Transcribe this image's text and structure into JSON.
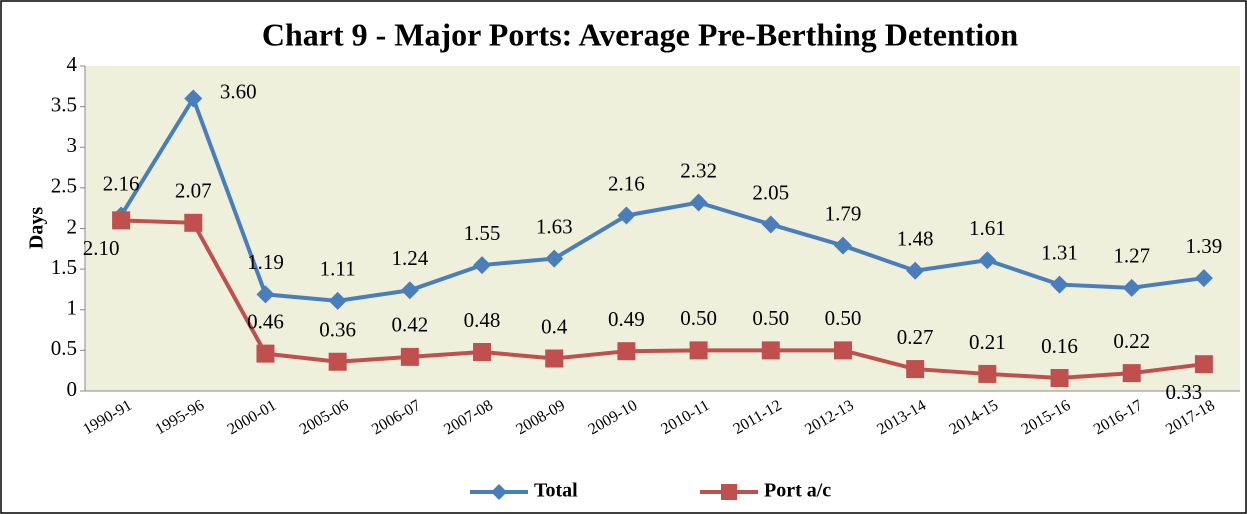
{
  "chart_data": {
    "type": "line",
    "title": "Chart 9 - Major Ports: Average Pre-Berthing Detention",
    "y_label": "Days",
    "categories": [
      "1990-91",
      "1995-96",
      "2000-01",
      "2005-06",
      "2006-07",
      "2007-08",
      "2008-09",
      "2009-10",
      "2010-11",
      "2011-12",
      "2012-13",
      "2013-14",
      "2014-15",
      "2015-16",
      "2016-17",
      "2017-18"
    ],
    "series": [
      {
        "name": "Total",
        "color": "#4a7ebb",
        "marker": "diamond",
        "values": [
          2.16,
          3.6,
          1.19,
          1.11,
          1.24,
          1.55,
          1.63,
          2.16,
          2.32,
          2.05,
          1.79,
          1.48,
          1.61,
          1.31,
          1.27,
          1.39
        ],
        "value_labels": [
          "2.16",
          "3.60",
          "1.19",
          "1.11",
          "1.24",
          "1.55",
          "1.63",
          "2.16",
          "2.32",
          "2.05",
          "1.79",
          "1.48",
          "1.61",
          "1.31",
          "1.27",
          "1.39"
        ]
      },
      {
        "name": "Port a/c",
        "color": "#c0504d",
        "marker": "square",
        "values": [
          2.1,
          2.07,
          0.46,
          0.36,
          0.42,
          0.48,
          0.4,
          0.49,
          0.5,
          0.5,
          0.5,
          0.27,
          0.21,
          0.16,
          0.22,
          0.33
        ],
        "value_labels": [
          "2.10",
          "2.07",
          "0.46",
          "0.36",
          "0.42",
          "0.48",
          "0.4",
          "0.49",
          "0.50",
          "0.50",
          "0.50",
          "0.27",
          "0.21",
          "0.16",
          "0.22",
          "0.33"
        ]
      }
    ],
    "ylim": [
      0,
      4
    ],
    "yticks": [
      0,
      0.5,
      1,
      1.5,
      2,
      2.5,
      3,
      3.5,
      4
    ],
    "grid": false,
    "legend": "bottom"
  }
}
